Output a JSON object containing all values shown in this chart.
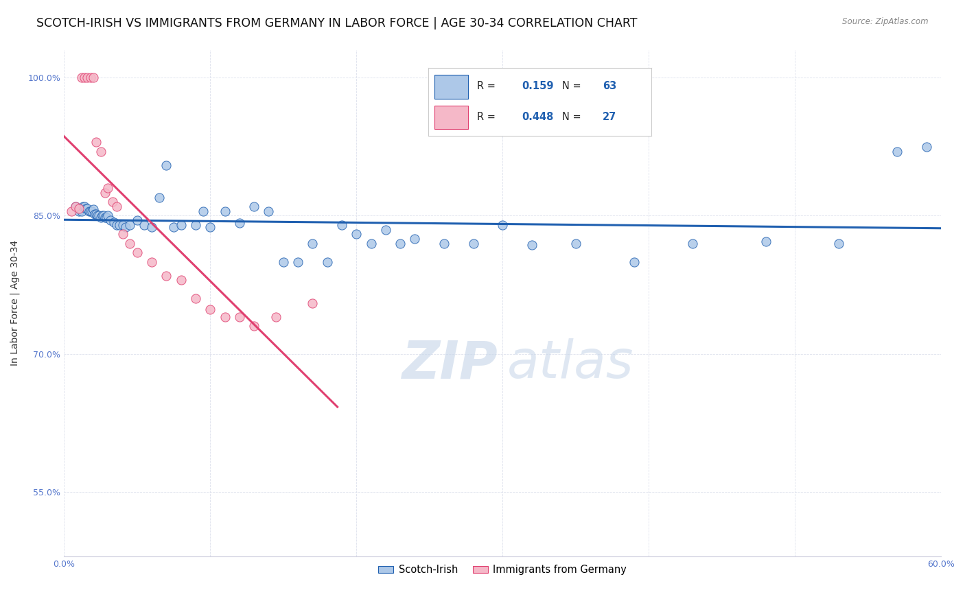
{
  "title": "SCOTCH-IRISH VS IMMIGRANTS FROM GERMANY IN LABOR FORCE | AGE 30-34 CORRELATION CHART",
  "source": "Source: ZipAtlas.com",
  "ylabel": "In Labor Force | Age 30-34",
  "x_min": 0.0,
  "x_max": 0.6,
  "y_min": 0.48,
  "y_max": 1.03,
  "y_ticks": [
    0.55,
    0.7,
    0.85,
    1.0
  ],
  "y_tick_labels": [
    "55.0%",
    "70.0%",
    "85.0%",
    "100.0%"
  ],
  "x_tick_labels_show": [
    "0.0%",
    "60.0%"
  ],
  "scotch_irish_color": "#adc8e8",
  "german_color": "#f5b8c8",
  "scotch_irish_line_color": "#2060b0",
  "german_line_color": "#e04070",
  "legend_R_scotch": "0.159",
  "legend_N_scotch": "63",
  "legend_R_german": "0.448",
  "legend_N_german": "27",
  "watermark_zip": "ZIP",
  "watermark_atlas": "atlas",
  "scotch_irish_x": [
    0.008,
    0.01,
    0.012,
    0.013,
    0.014,
    0.015,
    0.016,
    0.017,
    0.018,
    0.019,
    0.02,
    0.021,
    0.022,
    0.023,
    0.024,
    0.025,
    0.026,
    0.027,
    0.028,
    0.029,
    0.03,
    0.032,
    0.034,
    0.036,
    0.038,
    0.04,
    0.042,
    0.045,
    0.05,
    0.055,
    0.06,
    0.065,
    0.07,
    0.075,
    0.08,
    0.09,
    0.095,
    0.1,
    0.11,
    0.12,
    0.13,
    0.14,
    0.15,
    0.16,
    0.17,
    0.18,
    0.19,
    0.2,
    0.21,
    0.22,
    0.23,
    0.24,
    0.26,
    0.28,
    0.3,
    0.32,
    0.35,
    0.39,
    0.43,
    0.48,
    0.53,
    0.57,
    0.59
  ],
  "scotch_irish_y": [
    0.86,
    0.855,
    0.855,
    0.86,
    0.86,
    0.858,
    0.858,
    0.855,
    0.855,
    0.855,
    0.857,
    0.852,
    0.852,
    0.85,
    0.85,
    0.848,
    0.85,
    0.85,
    0.848,
    0.848,
    0.85,
    0.845,
    0.843,
    0.84,
    0.84,
    0.84,
    0.838,
    0.84,
    0.845,
    0.84,
    0.838,
    0.87,
    0.905,
    0.838,
    0.84,
    0.84,
    0.855,
    0.838,
    0.855,
    0.842,
    0.86,
    0.855,
    0.8,
    0.8,
    0.82,
    0.8,
    0.84,
    0.83,
    0.82,
    0.835,
    0.82,
    0.825,
    0.82,
    0.82,
    0.84,
    0.818,
    0.82,
    0.8,
    0.82,
    0.822,
    0.82,
    0.92,
    0.925
  ],
  "german_x": [
    0.005,
    0.008,
    0.01,
    0.012,
    0.014,
    0.016,
    0.018,
    0.02,
    0.022,
    0.025,
    0.028,
    0.03,
    0.033,
    0.036,
    0.04,
    0.045,
    0.05,
    0.06,
    0.07,
    0.08,
    0.09,
    0.1,
    0.11,
    0.12,
    0.13,
    0.145,
    0.17
  ],
  "german_y": [
    0.855,
    0.86,
    0.858,
    1.0,
    1.0,
    1.0,
    1.0,
    1.0,
    0.93,
    0.92,
    0.875,
    0.88,
    0.865,
    0.86,
    0.83,
    0.82,
    0.81,
    0.8,
    0.785,
    0.78,
    0.76,
    0.748,
    0.74,
    0.74,
    0.73,
    0.74,
    0.755
  ],
  "background_color": "#ffffff",
  "grid_color": "#dde0ec",
  "title_fontsize": 12.5,
  "axis_label_fontsize": 10,
  "tick_fontsize": 9,
  "tick_color": "#5577cc"
}
